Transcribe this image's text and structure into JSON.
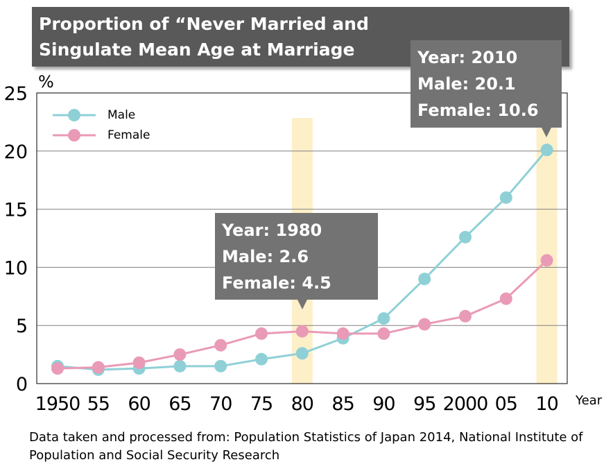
{
  "title": "Proportion of “Never Married and\nSingulate Mean Age at Marriage",
  "source_note": "Data taken and processed from: Population Statistics of Japan 2014, National Institute of Population and Social Security Research",
  "colors": {
    "male": "#8fd0d7",
    "female": "#e99ab6",
    "highlight": "#fdefc8",
    "callout": "#737373"
  },
  "callouts": [
    {
      "year_line": "Year: 1980",
      "male_line": "Male: 2.6",
      "female_line": "Female: 4.5"
    },
    {
      "year_line": "Year: 2010",
      "male_line": "Male: 20.1",
      "female_line": "Female: 10.6"
    }
  ],
  "chart_data": {
    "type": "line",
    "title": "Proportion of “Never Married and Singulate Mean Age at Marriage",
    "ylabel": "%",
    "xlabel": "Year",
    "ylim": [
      0,
      25
    ],
    "yticks": [
      0,
      5,
      10,
      15,
      20,
      25
    ],
    "categories": [
      "1950",
      "55",
      "60",
      "65",
      "70",
      "75",
      "80",
      "85",
      "90",
      "95",
      "2000",
      "05",
      "10"
    ],
    "highlighted_categories": [
      "80",
      "10"
    ],
    "legend_position": "top-left",
    "grid": true,
    "series": [
      {
        "name": "Male",
        "values": [
          1.5,
          1.2,
          1.3,
          1.5,
          1.5,
          2.1,
          2.6,
          3.9,
          5.6,
          9.0,
          12.6,
          16.0,
          20.1
        ]
      },
      {
        "name": "Female",
        "values": [
          1.3,
          1.4,
          1.8,
          2.5,
          3.3,
          4.3,
          4.5,
          4.3,
          4.3,
          5.1,
          5.8,
          7.3,
          10.6
        ]
      }
    ]
  }
}
